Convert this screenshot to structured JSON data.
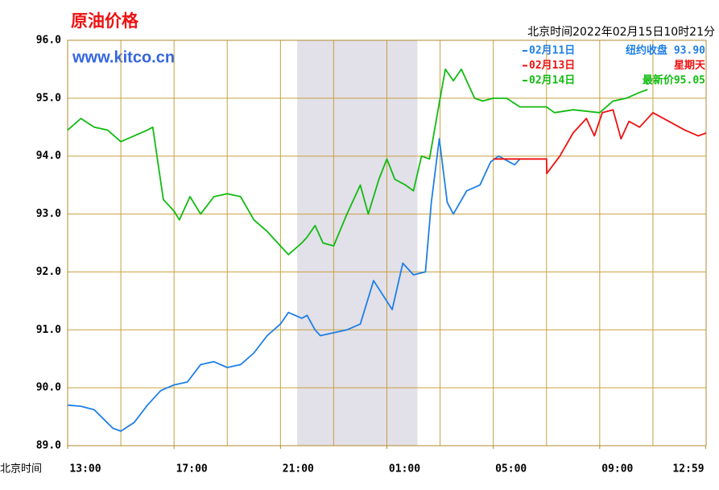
{
  "chart_data": {
    "type": "line",
    "title": "原油价格",
    "subtitle": "www.kitco.cn",
    "timestamp": "北京时间2022年02月15日10时21分",
    "xlabel": "北京时间",
    "xlim": [
      0,
      24
    ],
    "ylim": [
      89,
      96
    ],
    "yticks": [
      {
        "value": 89,
        "label": "89.0"
      },
      {
        "value": 90,
        "label": "90.0"
      },
      {
        "value": 91,
        "label": "91.0"
      },
      {
        "value": 92,
        "label": "92.0"
      },
      {
        "value": 93,
        "label": "93.0"
      },
      {
        "value": 94,
        "label": "94.0"
      },
      {
        "value": 95,
        "label": "95.0"
      },
      {
        "value": 96,
        "label": "96.0"
      }
    ],
    "xticks": [
      {
        "value": 0,
        "label": "13:00"
      },
      {
        "value": 4,
        "label": "17:00"
      },
      {
        "value": 8,
        "label": "21:00"
      },
      {
        "value": 12,
        "label": "01:00"
      },
      {
        "value": 16,
        "label": "05:00"
      },
      {
        "value": 20,
        "label": "09:00"
      },
      {
        "value": 23.98,
        "label": "12:59"
      }
    ],
    "xgrid": [
      2,
      4,
      6,
      8,
      10,
      12,
      14,
      16,
      18,
      20,
      22,
      24
    ],
    "shaded_range": [
      8.63,
      13.15
    ],
    "grid": true,
    "series": [
      {
        "name": "02月11日",
        "note": "纽约收盘 93.90",
        "color": "#1e7fe6",
        "x": [
          0,
          0.5,
          1,
          1.7,
          2,
          2.5,
          3,
          3.5,
          4,
          4.5,
          5,
          5.5,
          6,
          6.5,
          7,
          7.5,
          8,
          8.3,
          8.8,
          9,
          9.3,
          9.5,
          10,
          10.5,
          11,
          11.5,
          12.2,
          12.6,
          13,
          13.45,
          13.67,
          13.97,
          14.27,
          14.5,
          15,
          15.5,
          15.9,
          16.2,
          16.8,
          17
        ],
        "values": [
          89.7,
          89.68,
          89.62,
          89.3,
          89.25,
          89.4,
          89.7,
          89.95,
          90.05,
          90.1,
          90.4,
          90.45,
          90.35,
          90.4,
          90.6,
          90.9,
          91.1,
          91.3,
          91.2,
          91.25,
          91.0,
          90.9,
          90.95,
          91.0,
          91.1,
          91.85,
          91.35,
          92.15,
          91.95,
          92.0,
          93.2,
          94.3,
          93.2,
          93.0,
          93.4,
          93.5,
          93.9,
          94.0,
          93.85,
          93.95
        ]
      },
      {
        "name": "02月13日",
        "note": "星期天",
        "color": "#ee1111",
        "x": [
          16,
          18,
          18.01,
          18.5,
          19,
          19.5,
          19.8,
          20.1,
          20.5,
          20.8,
          21.1,
          21.5,
          22,
          22.6,
          23.2,
          23.7,
          24
        ],
        "values": [
          93.95,
          93.95,
          93.7,
          94.0,
          94.4,
          94.65,
          94.35,
          94.75,
          94.8,
          94.3,
          94.6,
          94.5,
          94.75,
          94.6,
          94.45,
          94.35,
          94.4
        ]
      },
      {
        "name": "02月14日",
        "note": "最新价95.05",
        "color": "#11bb11",
        "x": [
          0,
          0.5,
          1,
          1.5,
          2,
          2.5,
          3,
          3.2,
          3.6,
          4,
          4.2,
          4.6,
          5,
          5.5,
          6,
          6.5,
          7,
          7.5,
          8,
          8.3,
          8.8,
          9,
          9.3,
          9.6,
          10,
          10.5,
          11,
          11.3,
          11.7,
          12,
          12.3,
          12.7,
          13,
          13.3,
          13.6,
          14,
          14.2,
          14.5,
          14.8,
          15.3,
          15.6,
          16,
          16.5,
          17,
          18,
          18.3,
          19,
          20,
          20.5,
          21,
          21.5,
          21.8
        ],
        "values": [
          94.45,
          94.65,
          94.5,
          94.45,
          94.25,
          94.35,
          94.45,
          94.5,
          93.25,
          93.05,
          92.9,
          93.3,
          93.0,
          93.3,
          93.35,
          93.3,
          92.9,
          92.7,
          92.45,
          92.3,
          92.5,
          92.6,
          92.8,
          92.5,
          92.45,
          93.0,
          93.5,
          93.0,
          93.6,
          93.95,
          93.6,
          93.5,
          93.4,
          94.0,
          93.95,
          95.0,
          95.5,
          95.3,
          95.5,
          95.0,
          94.95,
          95.0,
          95.0,
          94.85,
          94.85,
          94.75,
          94.8,
          94.75,
          94.95,
          95.0,
          95.1,
          95.15
        ]
      }
    ]
  }
}
